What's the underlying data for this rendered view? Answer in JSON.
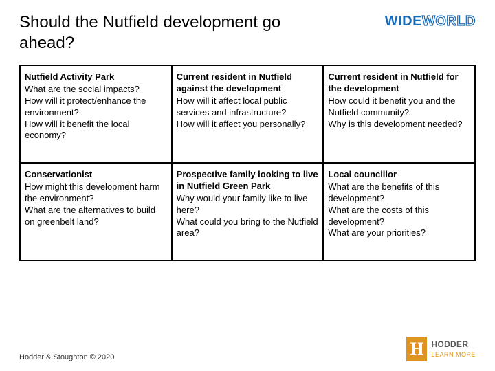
{
  "title": "Should the Nutfield development go ahead?",
  "wideworld": {
    "wide": "WIDE",
    "world": "WORLD"
  },
  "table": {
    "border_color": "#000000",
    "cell_font_size": 13,
    "rows": [
      [
        {
          "heading": "Nutfield Activity Park",
          "body": "What are the social impacts?\nHow will it protect/enhance the environment?\nHow will it benefit the local economy?"
        },
        {
          "heading": "Current resident in Nutfield against the development",
          "body": "How will it affect local public services and infrastructure?\nHow will it affect you personally?"
        },
        {
          "heading": "Current resident in Nutfield for the development",
          "body": "How could it benefit you and the Nutfield community?\nWhy is this development needed?"
        }
      ],
      [
        {
          "heading": "Conservationist",
          "body": "How might this development harm the environment?\nWhat are the alternatives to build on greenbelt land?"
        },
        {
          "heading": "Prospective family looking to live in Nutfield Green Park",
          "body": "Why would your family like to live here?\nWhat could you bring to the Nutfield area?"
        },
        {
          "heading": "Local councillor",
          "body": "What are the benefits of this development?\nWhat are the costs of this development?\nWhat are your priorities?"
        }
      ]
    ]
  },
  "footer": {
    "copyright": "Hodder & Stoughton © 2020",
    "hodder_h": "H",
    "hodder_name": "HODDER",
    "hodder_tag": "LEARN MORE"
  },
  "colors": {
    "brand_blue": "#1a6bb8",
    "hodder_orange": "#e0941f",
    "background": "#ffffff",
    "text": "#000000"
  }
}
